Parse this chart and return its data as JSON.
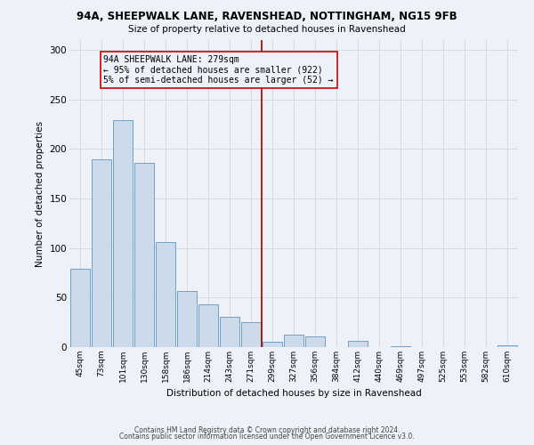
{
  "title": "94A, SHEEPWALK LANE, RAVENSHEAD, NOTTINGHAM, NG15 9FB",
  "subtitle": "Size of property relative to detached houses in Ravenshead",
  "xlabel": "Distribution of detached houses by size in Ravenshead",
  "ylabel": "Number of detached properties",
  "bar_color": "#cddaea",
  "bar_edge_color": "#6fa0c8",
  "categories": [
    "45sqm",
    "73sqm",
    "101sqm",
    "130sqm",
    "158sqm",
    "186sqm",
    "214sqm",
    "243sqm",
    "271sqm",
    "299sqm",
    "327sqm",
    "356sqm",
    "384sqm",
    "412sqm",
    "440sqm",
    "469sqm",
    "497sqm",
    "525sqm",
    "553sqm",
    "582sqm",
    "610sqm"
  ],
  "values": [
    79,
    190,
    229,
    186,
    106,
    57,
    43,
    31,
    25,
    5,
    13,
    11,
    0,
    6,
    0,
    1,
    0,
    0,
    0,
    0,
    2
  ],
  "vline_color": "#990000",
  "annotation_line1": "94A SHEEPWALK LANE: 279sqm",
  "annotation_line2": "← 95% of detached houses are smaller (922)",
  "annotation_line3": "5% of semi-detached houses are larger (52) →",
  "annotation_box_edge_color": "#cc0000",
  "ylim": [
    0,
    310
  ],
  "yticks": [
    0,
    50,
    100,
    150,
    200,
    250,
    300
  ],
  "grid_color": "#d0d8e0",
  "footer_line1": "Contains HM Land Registry data © Crown copyright and database right 2024.",
  "footer_line2": "Contains public sector information licensed under the Open Government Licence v3.0.",
  "background_color": "#eef2f8"
}
